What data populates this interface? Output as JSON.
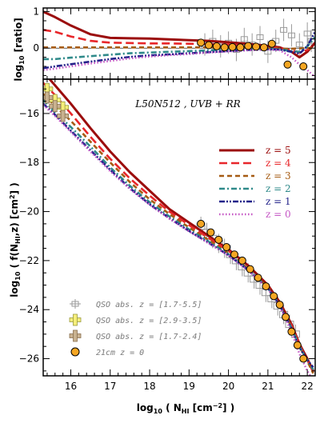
{
  "chart_data": [
    {
      "type": "line",
      "panel": "ratio",
      "ylabel_main": "log",
      "ylabel_sub": "10",
      "ylabel_tail": "[ratio]",
      "xlim": [
        15.3,
        22.2
      ],
      "ylim": [
        -0.85,
        1.1
      ],
      "yticks": [
        -1,
        0,
        1
      ],
      "series": [
        {
          "name": "z = 5",
          "color": "#9b0d0d",
          "dash": "solid",
          "x": [
            15.3,
            15.6,
            16.0,
            16.5,
            17.0,
            17.5,
            18.0,
            18.5,
            19.0,
            19.5,
            20.0,
            20.5,
            21.0,
            21.3,
            21.6,
            21.8,
            22.0,
            22.2
          ],
          "y": [
            1.0,
            0.85,
            0.62,
            0.38,
            0.28,
            0.27,
            0.26,
            0.24,
            0.22,
            0.2,
            0.16,
            0.12,
            0.06,
            0.02,
            -0.1,
            -0.25,
            -0.1,
            0.15
          ]
        },
        {
          "name": "z = 4",
          "color": "#e8262a",
          "dash": "long",
          "x": [
            15.3,
            15.6,
            16.0,
            16.5,
            17.0,
            17.5,
            18.0,
            18.5,
            19.0,
            19.5,
            20.0,
            20.5,
            21.0,
            21.3,
            21.6,
            21.8,
            22.0,
            22.2
          ],
          "y": [
            0.5,
            0.45,
            0.32,
            0.2,
            0.15,
            0.14,
            0.13,
            0.13,
            0.12,
            0.11,
            0.1,
            0.08,
            0.04,
            0.0,
            -0.05,
            -0.12,
            -0.05,
            0.1
          ]
        },
        {
          "name": "z = 3",
          "color": "#a65c14",
          "dash": "medium",
          "x": [
            15.3,
            16.0,
            17.0,
            18.0,
            19.0,
            20.0,
            21.0,
            21.5,
            22.0,
            22.2
          ],
          "y": [
            0.02,
            0.02,
            0.02,
            0.02,
            0.02,
            0.02,
            0.0,
            -0.02,
            0.0,
            0.0
          ]
        },
        {
          "name": "z = 2",
          "color": "#2f8a8a",
          "dash": "dashdot",
          "x": [
            15.3,
            15.6,
            16.0,
            16.5,
            17.0,
            17.5,
            18.0,
            18.5,
            19.0,
            19.5,
            20.0,
            20.5,
            21.0,
            21.3,
            21.6,
            21.8,
            22.0,
            22.2
          ],
          "y": [
            -0.3,
            -0.3,
            -0.26,
            -0.22,
            -0.18,
            -0.14,
            -0.12,
            -0.1,
            -0.08,
            -0.06,
            -0.04,
            -0.03,
            -0.02,
            -0.03,
            -0.08,
            -0.1,
            0.05,
            0.3
          ]
        },
        {
          "name": "z = 1",
          "color": "#23238a",
          "dash": "dashdotdot",
          "x": [
            15.3,
            15.6,
            16.0,
            16.5,
            17.0,
            17.5,
            18.0,
            18.5,
            19.0,
            19.5,
            20.0,
            20.5,
            21.0,
            21.3,
            21.6,
            21.8,
            22.0,
            22.2
          ],
          "y": [
            -0.55,
            -0.5,
            -0.44,
            -0.37,
            -0.3,
            -0.24,
            -0.2,
            -0.17,
            -0.14,
            -0.11,
            -0.08,
            -0.05,
            -0.03,
            -0.04,
            -0.1,
            -0.15,
            0.05,
            0.45
          ]
        },
        {
          "name": "z = 0",
          "color": "#c455c4",
          "dash": "dotted",
          "x": [
            15.3,
            15.6,
            16.0,
            16.5,
            17.0,
            17.5,
            18.0,
            18.5,
            19.0,
            19.5,
            20.0,
            20.5,
            21.0,
            21.3,
            21.6,
            21.8,
            22.0,
            22.2
          ],
          "y": [
            -0.6,
            -0.56,
            -0.5,
            -0.42,
            -0.35,
            -0.28,
            -0.23,
            -0.19,
            -0.16,
            -0.12,
            -0.09,
            -0.06,
            -0.04,
            -0.06,
            -0.25,
            -0.45,
            -0.6,
            -0.8
          ]
        }
      ],
      "markers_21cm": {
        "x": [
          19.3,
          19.5,
          19.7,
          19.9,
          20.1,
          20.3,
          20.5,
          20.7,
          20.9,
          21.1,
          21.5,
          21.9
        ],
        "y": [
          0.15,
          0.08,
          0.05,
          0.02,
          0.03,
          0.02,
          0.06,
          0.04,
          0.02,
          0.12,
          -0.45,
          -0.5
        ]
      }
    },
    {
      "type": "line",
      "panel": "main",
      "title": "L50N512 , UVB + RR",
      "xlabel_main": "log",
      "xlabel_sub": "10",
      "xlabel_tail": "( N",
      "xlabel_sub2": "HI",
      "xlabel_tail2": "[cm",
      "xlabel_sup": "−2",
      "xlabel_end": "] )",
      "ylabel_main": "log",
      "ylabel_sub": "10",
      "ylabel_mid": "( f(N",
      "ylabel_sub2": "HI",
      "ylabel_mid2": ",z) [cm",
      "ylabel_sup": "2",
      "ylabel_end": "] )",
      "xlim": [
        15.3,
        22.2
      ],
      "ylim": [
        -26.7,
        -14.6
      ],
      "xticks": [
        16,
        17,
        18,
        19,
        20,
        21,
        22
      ],
      "yticks": [
        -16,
        -18,
        -20,
        -22,
        -24,
        -26
      ],
      "series": [
        {
          "name": "z = 5",
          "color": "#9b0d0d",
          "dash": "solid",
          "x": [
            15.3,
            15.6,
            16.0,
            16.5,
            17.0,
            17.5,
            18.0,
            18.5,
            19.0,
            19.5,
            20.0,
            20.5,
            21.0,
            21.3,
            21.6,
            21.8,
            22.0,
            22.15
          ],
          "y": [
            -14.3,
            -14.85,
            -15.6,
            -16.6,
            -17.55,
            -18.4,
            -19.15,
            -19.9,
            -20.45,
            -21.0,
            -21.55,
            -22.2,
            -23.0,
            -23.7,
            -24.6,
            -25.4,
            -26.0,
            -26.5
          ]
        },
        {
          "name": "z = 4",
          "color": "#e8262a",
          "dash": "long",
          "x": [
            15.3,
            15.6,
            16.0,
            16.5,
            17.0,
            17.5,
            18.0,
            18.5,
            19.0,
            19.5,
            20.0,
            20.5,
            21.0,
            21.3,
            21.6,
            21.8,
            22.0,
            22.15
          ],
          "y": [
            -14.75,
            -15.25,
            -16.0,
            -16.95,
            -17.85,
            -18.65,
            -19.35,
            -20.0,
            -20.55,
            -21.08,
            -21.6,
            -22.25,
            -23.05,
            -23.75,
            -24.65,
            -25.45,
            -26.05,
            -26.55
          ]
        },
        {
          "name": "z = 3",
          "color": "#a65c14",
          "dash": "medium",
          "x": [
            15.3,
            15.6,
            16.0,
            16.5,
            17.0,
            17.5,
            18.0,
            18.5,
            19.0,
            19.5,
            20.0,
            20.5,
            21.0,
            21.3,
            21.6,
            21.8,
            22.0,
            22.15
          ],
          "y": [
            -15.2,
            -15.7,
            -16.3,
            -17.15,
            -18.0,
            -18.8,
            -19.5,
            -20.1,
            -20.65,
            -21.17,
            -21.7,
            -22.33,
            -23.1,
            -23.8,
            -24.7,
            -25.5,
            -26.1,
            -26.6
          ]
        },
        {
          "name": "z = 2",
          "color": "#2f8a8a",
          "dash": "dashdot",
          "x": [
            15.3,
            15.6,
            16.0,
            16.5,
            17.0,
            17.5,
            18.0,
            18.5,
            19.0,
            19.5,
            20.0,
            20.5,
            21.0,
            21.3,
            21.6,
            21.8,
            22.0,
            22.15
          ],
          "y": [
            -15.45,
            -15.95,
            -16.55,
            -17.35,
            -18.2,
            -18.95,
            -19.62,
            -20.2,
            -20.73,
            -21.23,
            -21.74,
            -22.36,
            -23.12,
            -23.8,
            -24.75,
            -25.5,
            -26.05,
            -26.45
          ]
        },
        {
          "name": "z = 1",
          "color": "#23238a",
          "dash": "dashdotdot",
          "x": [
            15.3,
            15.6,
            16.0,
            16.5,
            17.0,
            17.5,
            18.0,
            18.5,
            19.0,
            19.5,
            20.0,
            20.5,
            21.0,
            21.3,
            21.6,
            21.8,
            22.0,
            22.15
          ],
          "y": [
            -15.6,
            -16.05,
            -16.7,
            -17.5,
            -18.3,
            -19.05,
            -19.7,
            -20.27,
            -20.79,
            -21.28,
            -21.78,
            -22.38,
            -23.13,
            -23.82,
            -24.78,
            -25.55,
            -26.05,
            -26.35
          ]
        },
        {
          "name": "z = 0",
          "color": "#c455c4",
          "dash": "dotted",
          "x": [
            15.3,
            15.6,
            16.0,
            16.5,
            17.0,
            17.5,
            18.0,
            18.5,
            19.0,
            19.5,
            20.0,
            20.5,
            21.0,
            21.3,
            21.6,
            21.8,
            22.0,
            22.15
          ],
          "y": [
            -15.65,
            -16.1,
            -16.75,
            -17.55,
            -18.35,
            -19.08,
            -19.72,
            -20.29,
            -20.81,
            -21.3,
            -21.79,
            -22.4,
            -23.15,
            -23.85,
            -24.9,
            -25.8,
            -26.5,
            -26.9
          ]
        }
      ],
      "qso_grey": {
        "x": [
          19.3,
          19.45,
          19.6,
          19.75,
          19.9,
          20.05,
          20.2,
          20.35,
          20.5,
          20.65,
          20.8,
          20.95,
          21.1,
          21.25,
          21.4,
          21.55,
          21.7
        ],
        "y": [
          -20.6,
          -20.85,
          -21.1,
          -21.3,
          -21.5,
          -21.75,
          -22.0,
          -22.25,
          -22.5,
          -22.75,
          -23.0,
          -23.3,
          -23.55,
          -23.85,
          -24.2,
          -24.6,
          -25.0
        ]
      },
      "qso_yellow": {
        "x": [
          15.4,
          15.6,
          15.8
        ],
        "y": [
          -15.0,
          -15.45,
          -15.75
        ]
      },
      "qso_brown": {
        "x": [
          15.4,
          15.6,
          15.8
        ],
        "y": [
          -15.35,
          -15.7,
          -16.1
        ]
      },
      "markers_21cm": {
        "x": [
          19.3,
          19.55,
          19.75,
          19.95,
          20.15,
          20.35,
          20.55,
          20.75,
          20.95,
          21.15,
          21.3,
          21.45,
          21.6,
          21.75,
          21.9
        ],
        "y": [
          -20.5,
          -20.85,
          -21.15,
          -21.45,
          -21.75,
          -22.0,
          -22.35,
          -22.7,
          -23.05,
          -23.45,
          -23.8,
          -24.3,
          -24.9,
          -25.45,
          -26.0
        ]
      },
      "legend_lines": [
        {
          "label": "z = 5",
          "color": "#9b0d0d",
          "dash": "solid"
        },
        {
          "label": "z = 4",
          "color": "#e8262a",
          "dash": "long"
        },
        {
          "label": "z = 3",
          "color": "#a65c14",
          "dash": "medium"
        },
        {
          "label": "z = 2",
          "color": "#2f8a8a",
          "dash": "dashdot"
        },
        {
          "label": "z = 1",
          "color": "#23238a",
          "dash": "dashdotdot"
        },
        {
          "label": "z = 0",
          "color": "#c455c4",
          "dash": "dotted"
        }
      ],
      "legend_markers": [
        {
          "label": "QSO abs. z = [1.7-5.5]",
          "kind": "grey-cross"
        },
        {
          "label": "QSO abs. z = [2.9-3.5]",
          "kind": "yellow-cross"
        },
        {
          "label": "QSO abs. z = [1.7-2.4]",
          "kind": "brown-cross"
        },
        {
          "label": "21cm   z = 0",
          "kind": "orange-circle"
        }
      ]
    }
  ]
}
